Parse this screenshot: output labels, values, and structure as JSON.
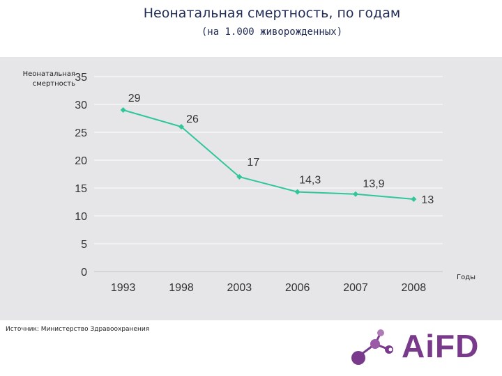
{
  "chart_data": {
    "type": "line",
    "title": "Неонатальная смертность, по годам",
    "subtitle": "(на 1.000 живорожденных)",
    "xlabel": "Годы",
    "ylabel": "Неонатальная смертность",
    "categories": [
      "1993",
      "1998",
      "2003",
      "2006",
      "2007",
      "2008"
    ],
    "series": [
      {
        "values": [
          29,
          26,
          17,
          14.3,
          13.9,
          13
        ]
      }
    ],
    "data_labels": [
      "29",
      "26",
      "17",
      "14,3",
      "13,9",
      "13"
    ],
    "yticks": [
      "0",
      "5",
      "10",
      "15",
      "20",
      "25",
      "30",
      "35"
    ],
    "ylim": [
      0,
      35
    ],
    "grid": true,
    "line_color": "#2fc69a"
  },
  "source": "Источник: Министерство Здравоохранения",
  "logo": {
    "text": "AiFD",
    "color": "#7a3a8c"
  }
}
